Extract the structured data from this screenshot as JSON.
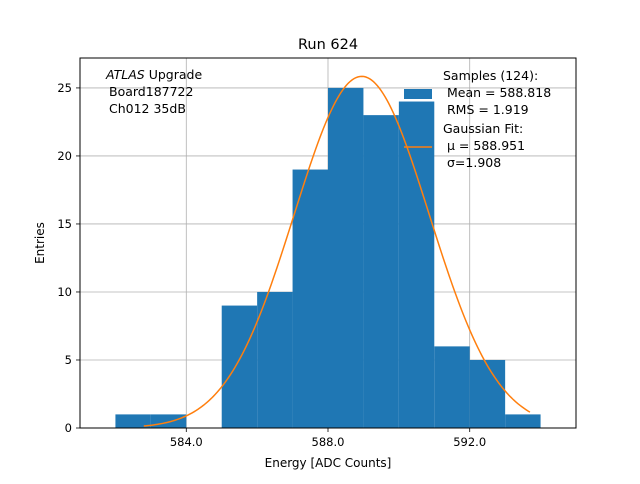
{
  "chart_data": {
    "type": "bar",
    "title": "Run 624",
    "xlabel": "Energy [ADC Counts]",
    "ylabel": "Entries",
    "xlim": [
      581.0,
      595.0
    ],
    "ylim": [
      0,
      27.2
    ],
    "grid": true,
    "x_ticks": [
      584.0,
      588.0,
      592.0
    ],
    "x_tick_labels": [
      "584.0",
      "588.0",
      "592.0"
    ],
    "y_ticks": [
      0,
      5,
      10,
      15,
      20,
      25
    ],
    "y_tick_labels": [
      "0",
      "5",
      "10",
      "15",
      "20",
      "25"
    ],
    "bin_edges": [
      582.0,
      583.0,
      584.0,
      585.0,
      586.0,
      587.0,
      588.0,
      589.0,
      590.0,
      591.0,
      592.0,
      593.0,
      594.0
    ],
    "counts": [
      1,
      1,
      0,
      9,
      10,
      19,
      25,
      23,
      24,
      6,
      5,
      1
    ],
    "bar_color": "#1f77b4",
    "fit_color": "#ff7f0e",
    "fit": {
      "mu": 588.951,
      "sigma": 1.908,
      "peak": 25.85,
      "x_range": [
        582.8,
        593.7
      ]
    },
    "annotation_lines": [
      "ATLAS Upgrade",
      "Board187722",
      "Ch012 35dB"
    ],
    "annotation_italic": "ATLAS",
    "legend_placement": "top-right",
    "legend": [
      {
        "kind": "bar",
        "lines": [
          "Samples (124):",
          "Mean = 588.818",
          "RMS = 1.919"
        ]
      },
      {
        "kind": "line",
        "lines": [
          "Gaussian Fit:",
          "μ = 588.951",
          "σ=1.908"
        ]
      }
    ]
  }
}
